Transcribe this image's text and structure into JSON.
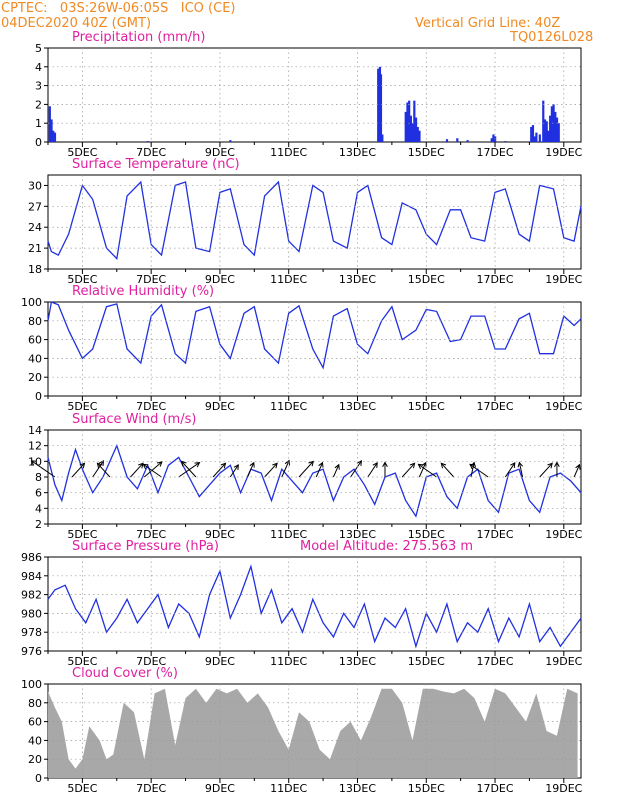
{
  "header": {
    "station": "CPTEC:   03S:26W-06:05S   ICO (CE)",
    "run": "04DEC2020 40Z (GMT)",
    "grid_note": "Vertical Grid Line: 40Z",
    "code": "TQ0126L028"
  },
  "colors": {
    "header_text": "#f08a24",
    "title_text": "#e020a0",
    "series": "#2030e0",
    "cloud": "#a8a8a8",
    "grid": "#9a9a9a"
  },
  "x_tick_labels": [
    "5DEC",
    "7DEC",
    "9DEC",
    "11DEC",
    "13DEC",
    "15DEC",
    "17DEC",
    "19DEC"
  ],
  "chart_data": [
    {
      "type": "bar",
      "title": "Precipitation (mm/h)",
      "ylim": [
        0,
        5
      ],
      "yticks": [
        0,
        1,
        2,
        3,
        4,
        5
      ],
      "x_day_range": [
        4,
        19.5
      ],
      "series": [
        {
          "x": [
            4.05,
            4.1,
            4.15,
            4.2,
            6.9,
            9.3,
            13.6,
            13.62,
            13.65,
            13.68,
            13.72,
            14.4,
            14.45,
            14.5,
            14.55,
            14.6,
            14.65,
            14.7,
            14.75,
            14.8,
            15.6,
            15.9,
            16.2,
            16.9,
            16.95,
            17.0,
            17.3,
            18.05,
            18.1,
            18.15,
            18.2,
            18.3,
            18.4,
            18.45,
            18.5,
            18.55,
            18.6,
            18.65,
            18.7,
            18.75,
            18.8,
            18.85
          ],
          "values": [
            1.9,
            1.2,
            0.6,
            0.5,
            0.05,
            0.1,
            3.9,
            3.8,
            4.0,
            3.6,
            0.4,
            1.6,
            2.1,
            2.2,
            1.4,
            1.0,
            2.2,
            1.3,
            0.8,
            0.6,
            0.15,
            0.2,
            0.1,
            0.2,
            0.4,
            0.3,
            0.05,
            0.8,
            0.9,
            0.3,
            0.5,
            0.4,
            2.2,
            1.2,
            1.1,
            0.6,
            1.4,
            1.9,
            2.0,
            1.6,
            1.3,
            1.0
          ]
        }
      ]
    },
    {
      "type": "line",
      "title": "Surface Temperature (nC)",
      "ylim": [
        18,
        31.5
      ],
      "yticks": [
        18,
        21,
        24,
        27,
        30
      ],
      "x_day_range": [
        4,
        19.5
      ],
      "series": [
        {
          "x": [
            4.0,
            4.1,
            4.3,
            4.6,
            5.0,
            5.3,
            5.7,
            6.0,
            6.3,
            6.7,
            7.0,
            7.3,
            7.7,
            8.0,
            8.3,
            8.7,
            9.0,
            9.3,
            9.7,
            10.0,
            10.3,
            10.7,
            11.0,
            11.3,
            11.7,
            12.0,
            12.3,
            12.7,
            13.0,
            13.3,
            13.7,
            14.0,
            14.3,
            14.7,
            15.0,
            15.3,
            15.7,
            16.0,
            16.3,
            16.7,
            17.0,
            17.3,
            17.7,
            18.0,
            18.3,
            18.7,
            19.0,
            19.3,
            19.5
          ],
          "values": [
            22.0,
            20.5,
            20.0,
            23.0,
            30.0,
            28.0,
            21.0,
            19.5,
            28.5,
            30.5,
            21.5,
            20.0,
            30.0,
            30.5,
            21.0,
            20.5,
            29.0,
            29.5,
            21.5,
            20.0,
            28.5,
            30.5,
            22.0,
            20.5,
            30.0,
            29.0,
            22.0,
            21.0,
            29.0,
            30.0,
            22.5,
            21.5,
            27.5,
            26.5,
            23.0,
            21.5,
            26.5,
            26.5,
            22.5,
            22.0,
            29.0,
            29.5,
            23.0,
            22.0,
            30.0,
            29.5,
            22.5,
            22.0,
            27.0
          ]
        }
      ]
    },
    {
      "type": "line",
      "title": "Relative Humidity (%)",
      "ylim": [
        0,
        100
      ],
      "yticks": [
        0,
        20,
        40,
        60,
        80,
        100
      ],
      "x_day_range": [
        4,
        19.5
      ],
      "series": [
        {
          "x": [
            4.0,
            4.1,
            4.3,
            4.6,
            5.0,
            5.3,
            5.7,
            6.0,
            6.3,
            6.7,
            7.0,
            7.3,
            7.7,
            8.0,
            8.3,
            8.7,
            9.0,
            9.3,
            9.7,
            10.0,
            10.3,
            10.7,
            11.0,
            11.3,
            11.7,
            12.0,
            12.3,
            12.7,
            13.0,
            13.3,
            13.7,
            14.0,
            14.3,
            14.7,
            15.0,
            15.3,
            15.7,
            16.0,
            16.3,
            16.7,
            17.0,
            17.3,
            17.7,
            18.0,
            18.3,
            18.7,
            19.0,
            19.3,
            19.5
          ],
          "values": [
            80,
            100,
            97,
            70,
            40,
            50,
            95,
            98,
            50,
            35,
            85,
            97,
            45,
            35,
            90,
            95,
            55,
            40,
            88,
            95,
            50,
            35,
            88,
            96,
            50,
            30,
            85,
            93,
            55,
            45,
            80,
            95,
            60,
            70,
            92,
            90,
            58,
            60,
            85,
            85,
            50,
            50,
            82,
            88,
            45,
            45,
            85,
            75,
            82
          ]
        }
      ]
    },
    {
      "type": "line",
      "title": "Surface Wind (m/s)",
      "ylim": [
        2,
        14
      ],
      "yticks": [
        2,
        4,
        6,
        8,
        10,
        12,
        14
      ],
      "x_day_range": [
        4,
        19.5
      ],
      "series": [
        {
          "x": [
            4.0,
            4.2,
            4.4,
            4.6,
            4.8,
            5.0,
            5.3,
            5.6,
            6.0,
            6.3,
            6.6,
            6.9,
            7.2,
            7.5,
            7.8,
            8.1,
            8.4,
            8.7,
            9.0,
            9.3,
            9.6,
            9.9,
            10.2,
            10.5,
            10.8,
            11.1,
            11.4,
            11.7,
            12.0,
            12.3,
            12.6,
            12.9,
            13.2,
            13.5,
            13.8,
            14.1,
            14.4,
            14.7,
            15.0,
            15.3,
            15.6,
            15.9,
            16.2,
            16.5,
            16.8,
            17.1,
            17.4,
            17.7,
            18.0,
            18.3,
            18.6,
            18.9,
            19.2,
            19.5
          ],
          "values": [
            10.5,
            7.0,
            5.0,
            8.5,
            11.5,
            9.0,
            6.0,
            8.0,
            12.0,
            8.0,
            6.5,
            9.5,
            6.0,
            9.5,
            10.5,
            8.0,
            5.5,
            7.0,
            8.5,
            9.5,
            6.0,
            9.0,
            8.5,
            5.0,
            9.0,
            7.5,
            6.0,
            8.5,
            9.0,
            5.0,
            8.0,
            9.0,
            7.0,
            4.5,
            8.0,
            8.5,
            5.0,
            3.0,
            8.0,
            8.5,
            5.5,
            4.0,
            8.0,
            9.0,
            5.0,
            3.5,
            8.5,
            9.0,
            5.0,
            3.5,
            8.0,
            8.5,
            7.5,
            6.0
          ]
        }
      ]
    },
    {
      "type": "line",
      "title": "Surface Pressure (hPa)",
      "annotation": "Model Altitude: 275.563 m",
      "ylim": [
        976,
        986
      ],
      "yticks": [
        976,
        978,
        980,
        982,
        984,
        986
      ],
      "x_day_range": [
        4,
        19.5
      ],
      "series": [
        {
          "x": [
            4.0,
            4.2,
            4.5,
            4.8,
            5.1,
            5.4,
            5.7,
            6.0,
            6.3,
            6.6,
            6.9,
            7.2,
            7.5,
            7.8,
            8.1,
            8.4,
            8.7,
            9.0,
            9.3,
            9.6,
            9.9,
            10.2,
            10.5,
            10.8,
            11.1,
            11.4,
            11.7,
            12.0,
            12.3,
            12.6,
            12.9,
            13.2,
            13.5,
            13.8,
            14.1,
            14.4,
            14.7,
            15.0,
            15.3,
            15.6,
            15.9,
            16.2,
            16.5,
            16.8,
            17.1,
            17.4,
            17.7,
            18.0,
            18.3,
            18.6,
            18.9,
            19.2,
            19.5
          ],
          "values": [
            981.5,
            982.5,
            983.0,
            980.5,
            979.0,
            981.5,
            978.0,
            979.5,
            981.5,
            979.0,
            980.5,
            982.0,
            978.5,
            981.0,
            980.0,
            977.5,
            982.0,
            984.5,
            979.5,
            982.0,
            985.0,
            980.0,
            982.5,
            979.0,
            980.5,
            978.0,
            981.5,
            979.0,
            977.5,
            980.0,
            978.5,
            981.0,
            977.0,
            979.5,
            978.5,
            980.5,
            976.5,
            980.0,
            978.0,
            981.0,
            977.0,
            979.0,
            978.0,
            980.5,
            977.0,
            979.5,
            977.5,
            981.0,
            977.0,
            978.5,
            976.5,
            978.0,
            979.5
          ]
        }
      ]
    },
    {
      "type": "area",
      "title": "Cloud Cover (%)",
      "ylim": [
        0,
        100
      ],
      "yticks": [
        0,
        20,
        40,
        60,
        80,
        100
      ],
      "x_day_range": [
        4,
        19.5
      ],
      "series": [
        {
          "x": [
            4.0,
            4.2,
            4.4,
            4.6,
            4.8,
            5.0,
            5.2,
            5.5,
            5.7,
            5.9,
            6.2,
            6.5,
            6.8,
            7.1,
            7.4,
            7.7,
            8.0,
            8.3,
            8.6,
            8.9,
            9.2,
            9.5,
            9.8,
            10.1,
            10.4,
            10.7,
            11.0,
            11.3,
            11.6,
            11.9,
            12.2,
            12.5,
            12.8,
            13.1,
            13.4,
            13.7,
            14.0,
            14.3,
            14.6,
            14.9,
            15.2,
            15.5,
            15.8,
            16.1,
            16.4,
            16.7,
            17.0,
            17.3,
            17.6,
            17.9,
            18.2,
            18.5,
            18.8,
            19.1,
            19.4
          ],
          "values": [
            92,
            75,
            60,
            20,
            10,
            20,
            55,
            40,
            20,
            25,
            80,
            70,
            20,
            90,
            95,
            35,
            85,
            95,
            80,
            95,
            90,
            95,
            80,
            90,
            75,
            50,
            30,
            70,
            60,
            30,
            20,
            50,
            60,
            40,
            65,
            95,
            95,
            80,
            40,
            95,
            95,
            92,
            90,
            95,
            85,
            60,
            95,
            90,
            75,
            60,
            90,
            50,
            45,
            95,
            90
          ]
        }
      ]
    },
    {
      "type": "wind_vectors",
      "series": [
        {
          "x": [
            4.2,
            4.7,
            5.3,
            5.8,
            6.4,
            6.8,
            7.3,
            7.8,
            8.3,
            8.8,
            9.3,
            9.8,
            10.3,
            10.8,
            11.3,
            11.8,
            12.3,
            12.8,
            13.3,
            13.8,
            14.3,
            14.8,
            15.3,
            15.8,
            16.3,
            16.8,
            17.3,
            17.8,
            18.3,
            18.8,
            19.3
          ],
          "speed": [
            9,
            7,
            8,
            7,
            7,
            8,
            7,
            8,
            8,
            7,
            6,
            7,
            7,
            8,
            8,
            7,
            6,
            8,
            7,
            7,
            7,
            7,
            7,
            7,
            7,
            7,
            7,
            7,
            7,
            7,
            6
          ],
          "direction_deg": [
            150,
            200,
            195,
            160,
            200,
            205,
            150,
            210,
            160,
            200,
            195,
            190,
            200,
            190,
            200,
            190,
            190,
            195,
            195,
            180,
            200,
            190,
            150,
            160,
            185,
            150,
            195,
            175,
            200,
            180,
            190
          ]
        }
      ]
    }
  ]
}
